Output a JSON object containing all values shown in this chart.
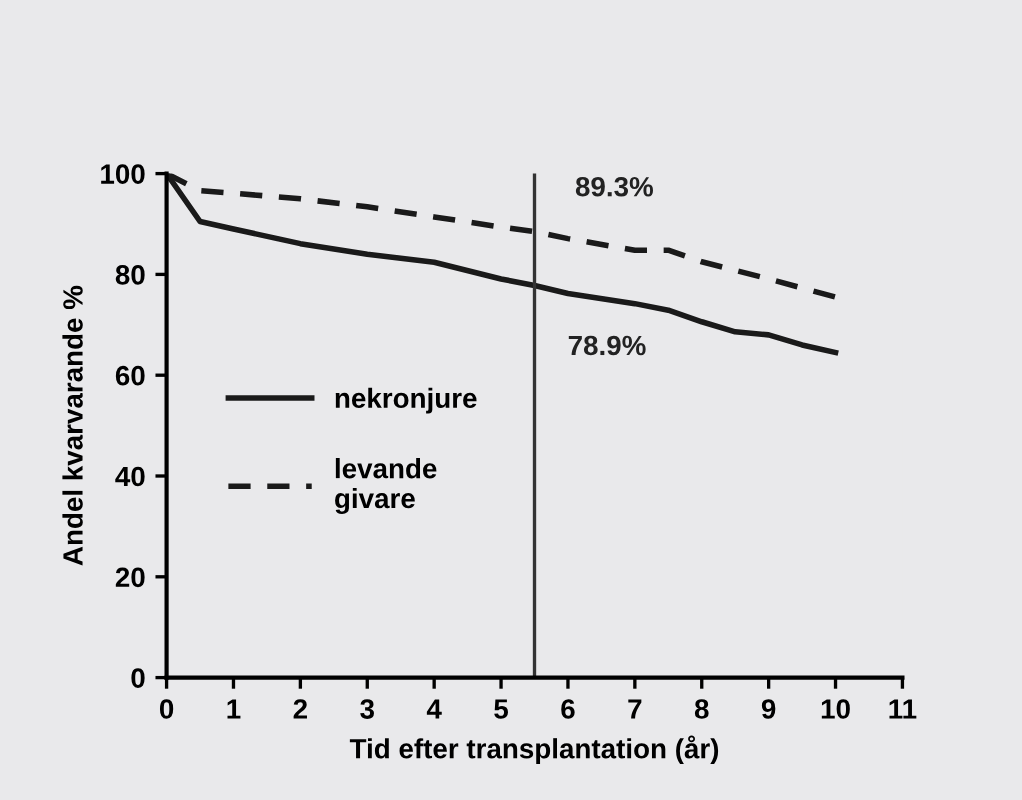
{
  "chart_data": {
    "type": "line",
    "xlabel": "Tid efter transplantation (år)",
    "ylabel": "Andel kvarvarande %",
    "xlim": [
      0,
      11
    ],
    "xticks": [
      0,
      1,
      2,
      3,
      4,
      5,
      6,
      7,
      8,
      9,
      10,
      11
    ],
    "ylim": [
      0,
      100
    ],
    "yticks": [
      0,
      20,
      40,
      60,
      80,
      100
    ],
    "series": [
      {
        "name": "nekronjure",
        "color": "#1a1a1a",
        "line_style": "solid",
        "x": [
          0,
          0.5,
          1,
          2,
          3,
          4,
          5,
          5.5,
          6,
          7,
          7.5,
          8,
          8.5,
          9,
          9.5,
          10
        ],
        "values": [
          100,
          90.5,
          89.0,
          86.1,
          84.0,
          82.4,
          79.1,
          77.8,
          76.2,
          74.2,
          72.9,
          70.6,
          68.6,
          68.0,
          66.0,
          64.5
        ]
      },
      {
        "name": "levande\ngivare",
        "color": "#1a1a1a",
        "line_style": "dashed",
        "x": [
          0,
          0.5,
          1,
          2,
          3,
          4,
          5,
          5.5,
          6,
          7,
          7.5,
          8,
          9,
          10
        ],
        "values": [
          100,
          96.6,
          96.1,
          95.0,
          93.4,
          91.4,
          89.4,
          88.5,
          87.1,
          84.8,
          84.8,
          82.5,
          79.1,
          75.5
        ]
      }
    ],
    "ref_lines": [
      {
        "axis": "x",
        "value": 5.5,
        "color": "#333333"
      }
    ],
    "annotations": [
      "89.3%",
      "78.9%"
    ],
    "legend": "center left",
    "grid": false
  }
}
